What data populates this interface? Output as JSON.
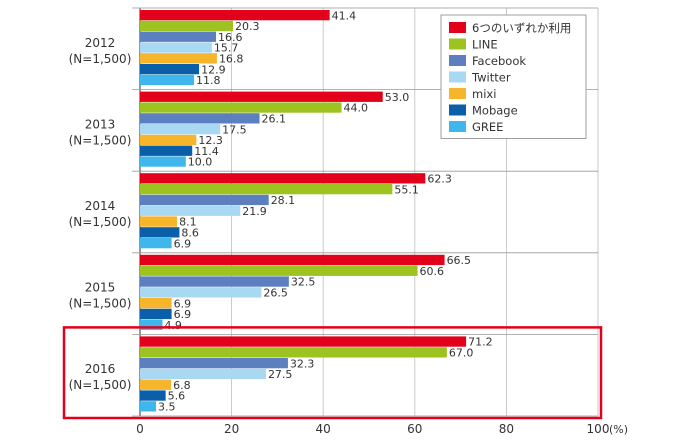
{
  "chart_data": {
    "type": "bar",
    "orientation": "horizontal",
    "categories": [
      "2012",
      "2013",
      "2014",
      "2015",
      "2016"
    ],
    "category_sublabels": [
      "(N=1,500)",
      "(N=1,500)",
      "(N=1,500)",
      "(N=1,500)",
      "(N=1,500)"
    ],
    "series": [
      {
        "name": "6つのいずれか利用",
        "color": "#e2001a",
        "values": [
          41.4,
          53.0,
          62.3,
          66.5,
          71.2
        ]
      },
      {
        "name": "LINE",
        "color": "#9cc31f",
        "values": [
          20.3,
          44.0,
          55.1,
          60.6,
          67.0
        ]
      },
      {
        "name": "Facebook",
        "color": "#5b7fbf",
        "values": [
          16.6,
          26.1,
          28.1,
          32.5,
          32.3
        ]
      },
      {
        "name": "Twitter",
        "color": "#a9d8f3",
        "values": [
          15.7,
          17.5,
          21.9,
          26.5,
          27.5
        ]
      },
      {
        "name": "mixi",
        "color": "#f7b52c",
        "values": [
          16.8,
          12.3,
          8.1,
          6.9,
          6.8
        ]
      },
      {
        "name": "Mobage",
        "color": "#0a5fa8",
        "values": [
          12.9,
          11.4,
          8.6,
          6.9,
          5.6
        ]
      },
      {
        "name": "GREE",
        "color": "#3fb6ec",
        "values": [
          11.8,
          10.0,
          6.9,
          4.9,
          3.5
        ]
      }
    ],
    "xlim": [
      0,
      100
    ],
    "x_ticks": [
      "0",
      "20",
      "40",
      "60",
      "80",
      "100"
    ],
    "x_unit": "(%)",
    "grid": true,
    "legend_position": "top-right",
    "highlighted_category": "2016",
    "highlight_color": "#e2001a"
  }
}
